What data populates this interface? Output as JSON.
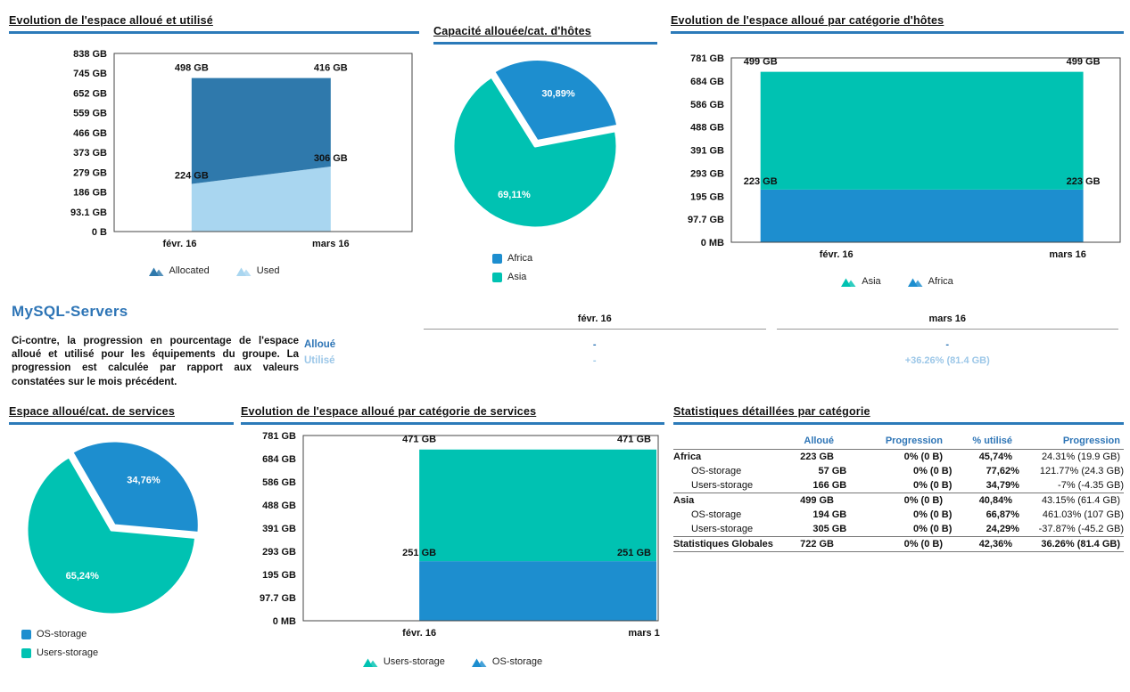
{
  "colors": {
    "accent_bar": "#2b7ab9",
    "header_blue": "#2e75b6",
    "light_blue_text": "#9cc7e8",
    "series_blue": "#1d8ecf",
    "series_teal": "#00c2b2",
    "allocated_dark": "#2f79ac",
    "used_light": "#a9d6f0"
  },
  "summary": {
    "title": "MySQL-Servers",
    "description": "Ci-contre, la progression en pourcentage de l'espace alloué et utilisé pour les équipements du groupe. La progression est calculée par rapport aux valeurs constatées sur le mois précédent.",
    "table": {
      "columns": [
        "févr. 16",
        "mars 16"
      ],
      "rows": [
        {
          "label": "Alloué",
          "values": [
            "-",
            "-"
          ]
        },
        {
          "label": "Utilisé",
          "values": [
            "-",
            "+36.26% (81.4 GB)"
          ]
        }
      ]
    }
  },
  "chart_data": [
    {
      "id": "space_allocated_used",
      "type": "area",
      "stacked": true,
      "title": "Evolution de l'espace alloué et utilisé",
      "categories": [
        "févr. 16",
        "mars 16"
      ],
      "series": [
        {
          "name": "Used",
          "color": "#a9d6f0",
          "values": [
            224,
            306
          ],
          "point_labels": [
            "224 GB",
            "306 GB"
          ]
        },
        {
          "name": "Allocated",
          "color": "#2f79ac",
          "values": [
            498,
            416
          ],
          "point_labels": [
            "498 GB",
            "416 GB"
          ]
        }
      ],
      "legend": [
        {
          "label": "Allocated",
          "color": "#2f79ac"
        },
        {
          "label": "Used",
          "color": "#a9d6f0"
        }
      ],
      "y_ticks": [
        "838 GB",
        "745 GB",
        "652 GB",
        "559 GB",
        "466 GB",
        "373 GB",
        "279 GB",
        "186 GB",
        "93.1 GB",
        "0 B"
      ],
      "ylim": [
        0,
        838
      ],
      "grid": false,
      "legend_position": "bottom"
    },
    {
      "id": "capacity_by_host_category",
      "type": "pie",
      "title": "Capacité allouée/cat. d'hôtes",
      "slices": [
        {
          "label": "Africa",
          "value_pct": 30.89,
          "display": "30,89%",
          "color": "#1d8ecf"
        },
        {
          "label": "Asia",
          "value_pct": 69.11,
          "display": "69,11%",
          "color": "#00c2b2"
        }
      ],
      "legend": [
        {
          "label": "Africa",
          "color": "#1d8ecf"
        },
        {
          "label": "Asia",
          "color": "#00c2b2"
        }
      ],
      "legend_position": "bottom"
    },
    {
      "id": "space_by_host_category",
      "type": "area",
      "stacked": true,
      "title": "Evolution de l'espace alloué par catégorie d'hôtes",
      "categories": [
        "févr. 16",
        "mars 16"
      ],
      "series": [
        {
          "name": "Africa",
          "color": "#1d8ecf",
          "values": [
            223,
            223
          ],
          "point_labels": [
            "223 GB",
            "223 GB"
          ]
        },
        {
          "name": "Asia",
          "color": "#00c2b2",
          "values": [
            499,
            499
          ],
          "point_labels": [
            "499 GB",
            "499 GB"
          ]
        }
      ],
      "legend": [
        {
          "label": "Asia",
          "color": "#00c2b2"
        },
        {
          "label": "Africa",
          "color": "#1d8ecf"
        }
      ],
      "y_ticks": [
        "781 GB",
        "684 GB",
        "586 GB",
        "488 GB",
        "391 GB",
        "293 GB",
        "195 GB",
        "97.7 GB",
        "0 MB"
      ],
      "ylim": [
        0,
        781
      ],
      "grid": false,
      "legend_position": "bottom"
    },
    {
      "id": "space_by_service_category_pie",
      "type": "pie",
      "title": "Espace alloué/cat. de services",
      "slices": [
        {
          "label": "OS-storage",
          "value_pct": 34.76,
          "display": "34,76%",
          "color": "#1d8ecf"
        },
        {
          "label": "Users-storage",
          "value_pct": 65.24,
          "display": "65,24%",
          "color": "#00c2b2"
        }
      ],
      "legend": [
        {
          "label": "OS-storage",
          "color": "#1d8ecf"
        },
        {
          "label": "Users-storage",
          "color": "#00c2b2"
        }
      ],
      "legend_position": "bottom"
    },
    {
      "id": "space_by_service_category_area",
      "type": "area",
      "stacked": true,
      "title": "Evolution de l'espace alloué par catégorie de services",
      "categories": [
        "févr. 16",
        "mars 1"
      ],
      "series": [
        {
          "name": "OS-storage",
          "color": "#1d8ecf",
          "values": [
            251,
            251
          ],
          "point_labels": [
            "251 GB",
            "251 GB"
          ]
        },
        {
          "name": "Users-storage",
          "color": "#00c2b2",
          "values": [
            471,
            471
          ],
          "point_labels": [
            "471 GB",
            "471 GB"
          ]
        }
      ],
      "legend": [
        {
          "label": "Users-storage",
          "color": "#00c2b2"
        },
        {
          "label": "OS-storage",
          "color": "#1d8ecf"
        }
      ],
      "y_ticks": [
        "781 GB",
        "684 GB",
        "586 GB",
        "488 GB",
        "391 GB",
        "293 GB",
        "195 GB",
        "97.7 GB",
        "0 MB"
      ],
      "ylim": [
        0,
        781
      ],
      "grid": false,
      "legend_position": "bottom"
    },
    {
      "id": "detailed_stats",
      "type": "table",
      "title": "Statistiques détaillées par catégorie",
      "columns": [
        "",
        "Alloué",
        "Progression",
        "% utilisé",
        "Progression"
      ],
      "rows": [
        {
          "name": "Africa",
          "indent": false,
          "bold": true,
          "sep_after": false,
          "total": false,
          "values": [
            "223 GB",
            "0% (0 B)",
            "45,74%",
            "24.31% (19.9 GB)"
          ]
        },
        {
          "name": "OS-storage",
          "indent": true,
          "bold": false,
          "sep_after": false,
          "total": false,
          "values": [
            "57 GB",
            "0% (0 B)",
            "77,62%",
            "121.77% (24.3 GB)"
          ]
        },
        {
          "name": "Users-storage",
          "indent": true,
          "bold": false,
          "sep_after": true,
          "total": false,
          "values": [
            "166 GB",
            "0% (0 B)",
            "34,79%",
            "-7% (-4.35 GB)"
          ]
        },
        {
          "name": "Asia",
          "indent": false,
          "bold": true,
          "sep_after": false,
          "total": false,
          "values": [
            "499 GB",
            "0% (0 B)",
            "40,84%",
            "43.15% (61.4 GB)"
          ]
        },
        {
          "name": "OS-storage",
          "indent": true,
          "bold": false,
          "sep_after": false,
          "total": false,
          "values": [
            "194 GB",
            "0% (0 B)",
            "66,87%",
            "461.03% (107 GB)"
          ]
        },
        {
          "name": "Users-storage",
          "indent": true,
          "bold": false,
          "sep_after": true,
          "total": false,
          "values": [
            "305 GB",
            "0% (0 B)",
            "24,29%",
            "-37.87% (-45.2 GB)"
          ]
        },
        {
          "name": "Statistiques Globales",
          "indent": false,
          "bold": true,
          "sep_after": true,
          "total": true,
          "values": [
            "722 GB",
            "0% (0 B)",
            "42,36%",
            "36.26% (81.4 GB)"
          ]
        }
      ]
    }
  ]
}
